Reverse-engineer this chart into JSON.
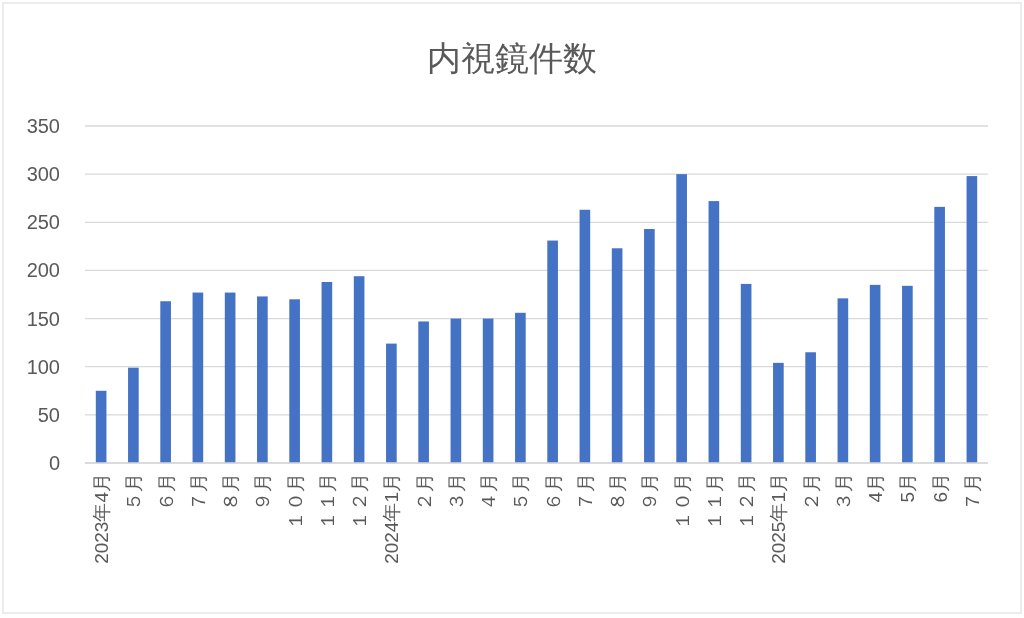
{
  "chart_data": {
    "type": "bar",
    "title": "内視鏡件数",
    "categories": [
      "2023年4月",
      "５月",
      "６月",
      "７月",
      "８月",
      "９月",
      "１０月",
      "１１月",
      "１２月",
      "2024年1月",
      "２月",
      "３月",
      "４月",
      "５月",
      "６月",
      "７月",
      "８月",
      "９月",
      "１０月",
      "１１月",
      "１２月",
      "2025年1月",
      "２月",
      "３月",
      "4月",
      "5月",
      "6月",
      "７月"
    ],
    "values": [
      75,
      99,
      168,
      177,
      177,
      173,
      170,
      188,
      194,
      124,
      147,
      150,
      150,
      156,
      231,
      263,
      223,
      243,
      300,
      272,
      186,
      104,
      115,
      171,
      185,
      184,
      266,
      298
    ],
    "color": "#4472c4",
    "ylim": [
      0,
      350
    ],
    "yticks": [
      0,
      50,
      100,
      150,
      200,
      250,
      300,
      350
    ],
    "grid": "y"
  }
}
